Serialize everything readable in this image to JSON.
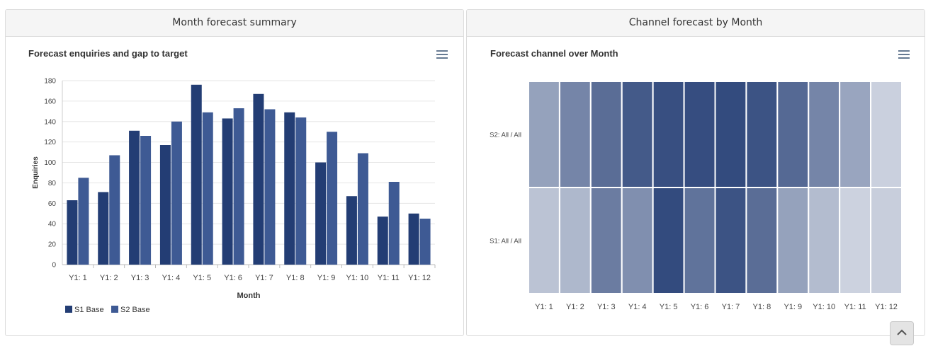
{
  "panels": {
    "left": {
      "header": "Month forecast summary"
    },
    "right": {
      "header": "Channel forecast by Month"
    }
  },
  "icons": {
    "menu": "hamburger-menu-icon",
    "scroll_top": "chevron-up-icon"
  },
  "colors": {
    "s1": "#233d74",
    "s2": "#3e5a94",
    "heat_base": "#2b4479"
  },
  "chart_data": [
    {
      "type": "bar",
      "title": "Forecast enquiries and gap to target",
      "xlabel": "Month",
      "ylabel": "Enquiries",
      "categories": [
        "Y1: 1",
        "Y1: 2",
        "Y1: 3",
        "Y1: 4",
        "Y1: 5",
        "Y1: 6",
        "Y1: 7",
        "Y1: 8",
        "Y1: 9",
        "Y1: 10",
        "Y1: 11",
        "Y1: 12"
      ],
      "series": [
        {
          "name": "S1 Base",
          "values": [
            63,
            71,
            131,
            117,
            176,
            143,
            167,
            149,
            100,
            67,
            47,
            50
          ]
        },
        {
          "name": "S2 Base",
          "values": [
            85,
            107,
            126,
            140,
            149,
            153,
            152,
            144,
            130,
            109,
            81,
            45
          ]
        }
      ],
      "ylim": [
        0,
        180
      ],
      "yticks": [
        0,
        20,
        40,
        60,
        80,
        100,
        120,
        140,
        160,
        180
      ],
      "grid": true,
      "legend": "bottom-left"
    },
    {
      "type": "heatmap",
      "title": "Forecast channel over Month",
      "x": [
        "Y1: 1",
        "Y1: 2",
        "Y1: 3",
        "Y1: 4",
        "Y1: 5",
        "Y1: 6",
        "Y1: 7",
        "Y1: 8",
        "Y1: 9",
        "Y1: 10",
        "Y1: 11",
        "Y1: 12"
      ],
      "y": [
        "S2: All / All",
        "S1: All / All"
      ],
      "values": [
        [
          0.5,
          0.65,
          0.78,
          0.88,
          0.94,
          0.95,
          0.96,
          0.92,
          0.8,
          0.65,
          0.48,
          0.25
        ],
        [
          0.32,
          0.38,
          0.7,
          0.6,
          0.96,
          0.75,
          0.92,
          0.78,
          0.5,
          0.36,
          0.24,
          0.26
        ]
      ]
    }
  ]
}
